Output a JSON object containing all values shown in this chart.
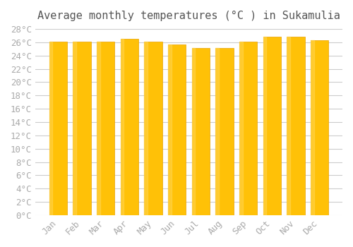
{
  "title": "Average monthly temperatures (°C ) in Sukamulia",
  "months": [
    "Jan",
    "Feb",
    "Mar",
    "Apr",
    "May",
    "Jun",
    "Jul",
    "Aug",
    "Sep",
    "Oct",
    "Nov",
    "Dec"
  ],
  "values": [
    26.1,
    26.1,
    26.1,
    26.5,
    26.1,
    25.7,
    25.1,
    25.1,
    26.1,
    26.8,
    26.8,
    26.3
  ],
  "bar_color": "#FFC107",
  "bar_edge_color": "#E8A000",
  "background_color": "#FFFFFF",
  "grid_color": "#CCCCCC",
  "ytick_step": 2,
  "ymin": 0,
  "ymax": 28,
  "title_fontsize": 11,
  "tick_fontsize": 9,
  "tick_color": "#AAAAAA",
  "font_family": "monospace"
}
